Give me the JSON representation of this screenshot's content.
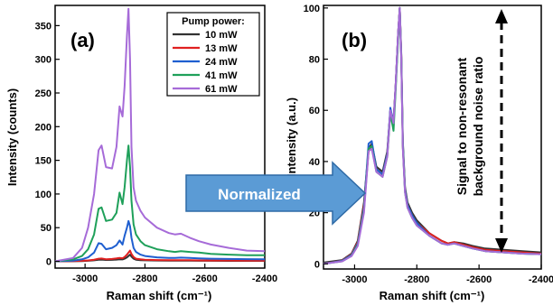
{
  "chart_data": [
    {
      "type": "line",
      "panel_label": "(a)",
      "xlabel": "Raman shift (cm⁻¹)",
      "ylabel": "Intensity (counts)",
      "xlim": [
        -3100,
        -2400
      ],
      "ylim": [
        -10,
        380
      ],
      "x_ticks": [
        -3000,
        -2800,
        -2600,
        -2400
      ],
      "y_ticks": [
        0,
        50,
        100,
        150,
        200,
        250,
        300,
        350
      ],
      "legend_title": "Pump power:",
      "legend_position": "top-right",
      "grid": false,
      "series": [
        {
          "name": "10 mW",
          "color": "#333333",
          "x": [
            -3100,
            -3040,
            -3010,
            -2990,
            -2970,
            -2955,
            -2945,
            -2930,
            -2910,
            -2895,
            -2885,
            -2875,
            -2868,
            -2860,
            -2855,
            -2850,
            -2845,
            -2838,
            -2830,
            -2815,
            -2800,
            -2760,
            -2720,
            -2700,
            -2680,
            -2650,
            -2620,
            -2580,
            -2520,
            -2460,
            -2400
          ],
          "y": [
            0,
            0.2,
            0.5,
            0.9,
            1.5,
            2.5,
            2.6,
            2.0,
            2.2,
            2.6,
            3.0,
            2.8,
            4.0,
            6.0,
            8.0,
            10.0,
            7.0,
            4.0,
            2.5,
            1.8,
            1.5,
            1.2,
            1.0,
            1.0,
            1.1,
            1.0,
            0.9,
            0.8,
            0.7,
            0.7,
            0.7
          ]
        },
        {
          "name": "13 mW",
          "color": "#e02020",
          "x": [
            -3100,
            -3040,
            -3010,
            -2990,
            -2970,
            -2955,
            -2945,
            -2930,
            -2910,
            -2895,
            -2885,
            -2875,
            -2868,
            -2860,
            -2855,
            -2850,
            -2845,
            -2838,
            -2830,
            -2815,
            -2800,
            -2760,
            -2720,
            -2700,
            -2680,
            -2650,
            -2620,
            -2580,
            -2520,
            -2460,
            -2400
          ],
          "y": [
            0,
            0.3,
            0.8,
            1.4,
            2.5,
            4.0,
            4.2,
            3.2,
            3.6,
            4.3,
            5.0,
            4.6,
            6.5,
            10.0,
            13.0,
            16.0,
            11.0,
            6.5,
            4.0,
            3.0,
            2.4,
            1.9,
            1.6,
            1.6,
            1.8,
            1.6,
            1.4,
            1.3,
            1.2,
            1.1,
            1.1
          ]
        },
        {
          "name": "24 mW",
          "color": "#1f5fd0",
          "x": [
            -3100,
            -3040,
            -3010,
            -2990,
            -2970,
            -2955,
            -2945,
            -2930,
            -2910,
            -2895,
            -2885,
            -2875,
            -2868,
            -2860,
            -2855,
            -2850,
            -2845,
            -2838,
            -2830,
            -2815,
            -2800,
            -2760,
            -2720,
            -2700,
            -2680,
            -2650,
            -2620,
            -2580,
            -2520,
            -2460,
            -2400
          ],
          "y": [
            0,
            1,
            3,
            6,
            13,
            27,
            26,
            18,
            20,
            24,
            31,
            25,
            38,
            50,
            60,
            52,
            35,
            20,
            14,
            10,
            8,
            6,
            5,
            5,
            5.5,
            5,
            4.5,
            4,
            3.5,
            3.3,
            3.2
          ]
        },
        {
          "name": "41 mW",
          "color": "#1fa05a",
          "x": [
            -3100,
            -3040,
            -3010,
            -2990,
            -2970,
            -2955,
            -2945,
            -2930,
            -2910,
            -2895,
            -2885,
            -2875,
            -2868,
            -2860,
            -2855,
            -2850,
            -2845,
            -2838,
            -2830,
            -2815,
            -2800,
            -2760,
            -2720,
            -2700,
            -2680,
            -2650,
            -2620,
            -2580,
            -2520,
            -2460,
            -2400
          ],
          "y": [
            0,
            3,
            8,
            18,
            40,
            78,
            80,
            60,
            62,
            72,
            102,
            85,
            110,
            150,
            172,
            140,
            90,
            55,
            40,
            30,
            24,
            18,
            15,
            14,
            15,
            14,
            13,
            11,
            10,
            9,
            9
          ]
        },
        {
          "name": "61 mW",
          "color": "#a66bd8",
          "x": [
            -3100,
            -3040,
            -3010,
            -2990,
            -2970,
            -2955,
            -2945,
            -2930,
            -2910,
            -2895,
            -2885,
            -2875,
            -2868,
            -2860,
            -2855,
            -2850,
            -2845,
            -2838,
            -2830,
            -2815,
            -2800,
            -2760,
            -2720,
            -2700,
            -2680,
            -2650,
            -2620,
            -2580,
            -2520,
            -2460,
            -2400
          ],
          "y": [
            0,
            5,
            20,
            50,
            100,
            165,
            172,
            140,
            138,
            170,
            230,
            215,
            260,
            335,
            375,
            300,
            170,
            110,
            90,
            75,
            65,
            50,
            42,
            40,
            41,
            35,
            30,
            25,
            20,
            16,
            15
          ]
        }
      ]
    },
    {
      "type": "line",
      "panel_label": "(b)",
      "xlabel": "Raman shift (cm⁻¹)",
      "ylabel": "Intensity (a.u.)",
      "xlim": [
        -3100,
        -2400
      ],
      "ylim": [
        -2,
        101
      ],
      "x_ticks": [
        -3000,
        -2800,
        -2600,
        -2400
      ],
      "y_ticks": [
        0,
        20,
        40,
        60,
        80,
        100
      ],
      "grid": false,
      "annotation": "Signal to non-resonant background noise ratio",
      "series": [
        {
          "name": "10 mW",
          "color": "#333333",
          "x": [
            -3100,
            -3040,
            -3010,
            -2990,
            -2970,
            -2955,
            -2945,
            -2930,
            -2910,
            -2895,
            -2885,
            -2875,
            -2868,
            -2860,
            -2855,
            -2850,
            -2845,
            -2838,
            -2830,
            -2815,
            -2800,
            -2760,
            -2720,
            -2700,
            -2680,
            -2650,
            -2620,
            -2580,
            -2520,
            -2460,
            -2400
          ],
          "y": [
            0.5,
            1.5,
            4,
            9,
            24,
            45,
            47,
            38,
            36,
            44,
            60,
            56,
            70,
            90,
            100,
            82,
            48,
            30,
            24,
            20,
            17,
            12,
            9,
            8,
            8.5,
            8,
            7,
            6,
            5.5,
            5,
            4.5
          ]
        },
        {
          "name": "13 mW",
          "color": "#e02020",
          "x": [
            -3100,
            -3040,
            -3010,
            -2990,
            -2970,
            -2955,
            -2945,
            -2930,
            -2910,
            -2895,
            -2885,
            -2875,
            -2868,
            -2860,
            -2855,
            -2850,
            -2845,
            -2838,
            -2830,
            -2815,
            -2800,
            -2760,
            -2720,
            -2700,
            -2680,
            -2650,
            -2620,
            -2580,
            -2520,
            -2460,
            -2400
          ],
          "y": [
            0,
            1.3,
            3.8,
            8.5,
            23,
            44,
            46,
            37,
            35,
            43,
            60,
            55,
            70,
            90,
            100,
            81,
            46,
            29,
            23,
            19,
            16,
            12,
            9,
            8,
            8.5,
            7.5,
            6.5,
            5.5,
            5,
            4.5,
            4
          ]
        },
        {
          "name": "24 mW",
          "color": "#1f5fd0",
          "x": [
            -3100,
            -3040,
            -3010,
            -2990,
            -2970,
            -2955,
            -2945,
            -2930,
            -2910,
            -2895,
            -2885,
            -2875,
            -2868,
            -2860,
            -2855,
            -2850,
            -2845,
            -2838,
            -2830,
            -2815,
            -2800,
            -2760,
            -2720,
            -2700,
            -2680,
            -2650,
            -2620,
            -2580,
            -2520,
            -2460,
            -2400
          ],
          "y": [
            0,
            1.2,
            3.5,
            8,
            22,
            47,
            48,
            37,
            35,
            43,
            61,
            55,
            70,
            90,
            100,
            81,
            47,
            29,
            23,
            19,
            16,
            11,
            8,
            7.5,
            8,
            7,
            6,
            5,
            4.5,
            4,
            3.8
          ]
        },
        {
          "name": "41 mW",
          "color": "#1fa05a",
          "x": [
            -3100,
            -3040,
            -3010,
            -2990,
            -2970,
            -2955,
            -2945,
            -2930,
            -2910,
            -2895,
            -2885,
            -2875,
            -2868,
            -2860,
            -2855,
            -2850,
            -2845,
            -2838,
            -2830,
            -2815,
            -2800,
            -2760,
            -2720,
            -2700,
            -2680,
            -2650,
            -2620,
            -2580,
            -2520,
            -2460,
            -2400
          ],
          "y": [
            0,
            1,
            3.2,
            7.5,
            21,
            45,
            46,
            36,
            34,
            42,
            59,
            52,
            68,
            88,
            100,
            80,
            46,
            28,
            22,
            18,
            15,
            11,
            8,
            7.5,
            8,
            7,
            6,
            5,
            4.5,
            4,
            3.8
          ]
        },
        {
          "name": "61 mW",
          "color": "#a66bd8",
          "x": [
            -3100,
            -3040,
            -3010,
            -2990,
            -2970,
            -2955,
            -2945,
            -2930,
            -2910,
            -2895,
            -2885,
            -2875,
            -2868,
            -2860,
            -2855,
            -2850,
            -2845,
            -2838,
            -2830,
            -2815,
            -2800,
            -2760,
            -2720,
            -2700,
            -2680,
            -2650,
            -2620,
            -2580,
            -2520,
            -2460,
            -2400
          ],
          "y": [
            0,
            1,
            3,
            7,
            20,
            44,
            45,
            36,
            34,
            42,
            60,
            55,
            70,
            90,
            100,
            80,
            45,
            28,
            22,
            18,
            15,
            11,
            8,
            7.5,
            8,
            7,
            6,
            5,
            4.5,
            4,
            3.8
          ]
        }
      ]
    }
  ],
  "arrow_label": "Normalized",
  "colors": {
    "arrow_fill": "#5b9bd5",
    "arrow_stroke": "#2e6aa6",
    "annotation_arrow": "#000000"
  }
}
